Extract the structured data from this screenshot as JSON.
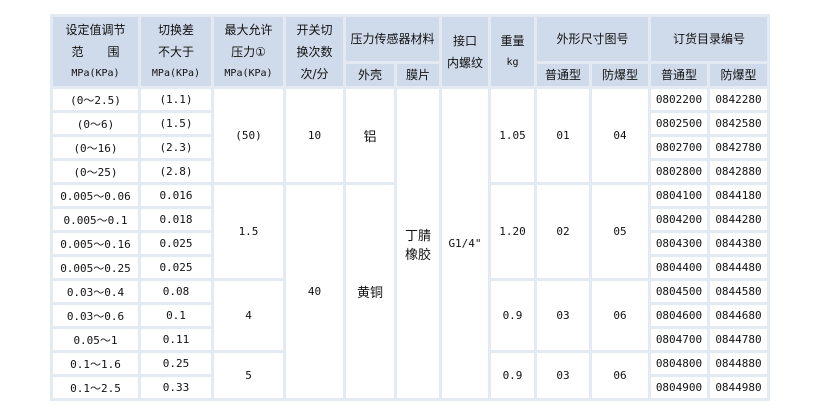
{
  "header": {
    "range": [
      "设定值调节",
      "范　　围",
      "MPa(KPa)"
    ],
    "diff": [
      "切换差",
      "不大于",
      "MPa(KPa)"
    ],
    "max_pressure": [
      "最大允许",
      "压力①",
      "MPa(KPa)"
    ],
    "switch_count": [
      "开关切",
      "换次数",
      "次/分"
    ],
    "sensor_material": "压力传感器材料",
    "shell": "外壳",
    "membrane": "膜片",
    "interface": [
      "接口",
      "内螺纹"
    ],
    "weight": [
      "重量",
      "kg"
    ],
    "dimension_drawing": "外形尺寸图号",
    "order_number": "订货目录编号",
    "normal": "普通型",
    "explosion_proof": "防爆型"
  },
  "rows": [
    {
      "range": "(0～2.5)",
      "diff": "(1.1)",
      "order_normal": "0802200",
      "order_ex": "0842280"
    },
    {
      "range": "(0～6)",
      "diff": "(1.5)",
      "order_normal": "0802500",
      "order_ex": "0842580"
    },
    {
      "range": "(0～16)",
      "diff": "(2.3)",
      "order_normal": "0802700",
      "order_ex": "0842780"
    },
    {
      "range": "(0～25)",
      "diff": "(2.8)",
      "order_normal": "0802800",
      "order_ex": "0842880"
    },
    {
      "range": "0.005～0.06",
      "diff": "0.016",
      "order_normal": "0804100",
      "order_ex": "0844180"
    },
    {
      "range": "0.005～0.1",
      "diff": "0.018",
      "order_normal": "0804200",
      "order_ex": "0844280"
    },
    {
      "range": "0.005～0.16",
      "diff": "0.025",
      "order_normal": "0804300",
      "order_ex": "0844380"
    },
    {
      "range": "0.005～0.25",
      "diff": "0.025",
      "order_normal": "0804400",
      "order_ex": "0844480"
    },
    {
      "range": "0.03～0.4",
      "diff": "0.08",
      "order_normal": "0804500",
      "order_ex": "0844580"
    },
    {
      "range": "0.03～0.6",
      "diff": "0.1",
      "order_normal": "0804600",
      "order_ex": "0844680"
    },
    {
      "range": "0.05～1",
      "diff": "0.11",
      "order_normal": "0804700",
      "order_ex": "0844780"
    },
    {
      "range": "0.1～1.6",
      "diff": "0.25",
      "order_normal": "0804800",
      "order_ex": "0844880"
    },
    {
      "range": "0.1～2.5",
      "diff": "0.33",
      "order_normal": "0804900",
      "order_ex": "0844980"
    }
  ],
  "max_pressure": [
    "(50)",
    "1.5",
    "4",
    "5"
  ],
  "switch_count": [
    "10",
    "40"
  ],
  "shell": [
    "铝",
    "黄铜"
  ],
  "membrane": "丁腈橡胶",
  "interface": "G1/4\"",
  "weight": [
    "1.05",
    "1.20",
    "0.9",
    "0.9"
  ],
  "dim_normal": [
    "01",
    "02",
    "03",
    "03"
  ],
  "dim_ex": [
    "04",
    "05",
    "06",
    "06"
  ]
}
